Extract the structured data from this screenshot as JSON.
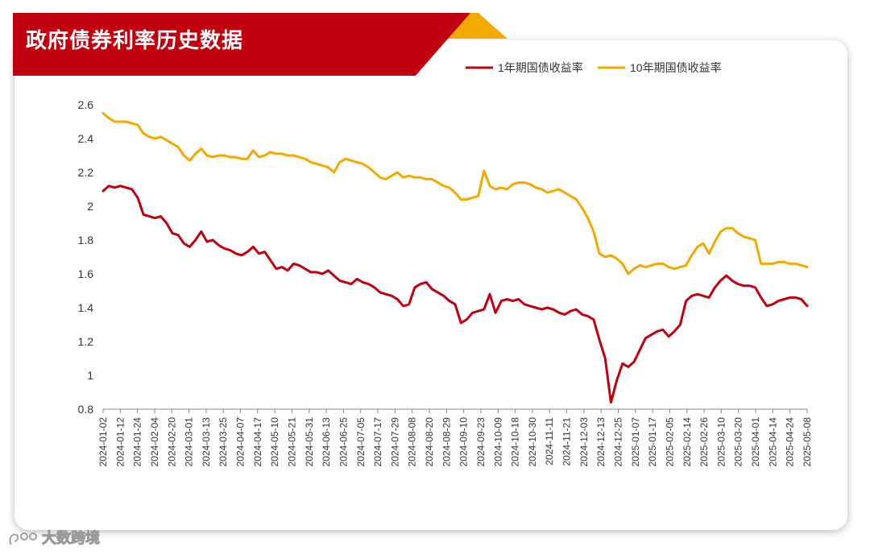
{
  "title": "政府债券利率历史数据",
  "watermark": "大数跨境",
  "chart_data": {
    "type": "line",
    "legend_position": "top-right",
    "grid": false,
    "ylim": [
      0.8,
      2.6
    ],
    "y_ticks": [
      "2.6",
      "2.4",
      "2.2",
      "2",
      "1.8",
      "1.6",
      "1.4",
      "1.2",
      "1",
      "0.8"
    ],
    "x_ticks": [
      "2024-01-02",
      "2024-01-12",
      "2024-01-24",
      "2024-02-04",
      "2024-02-20",
      "2024-03-01",
      "2024-03-13",
      "2024-03-25",
      "2024-04-07",
      "2024-04-17",
      "2024-05-10",
      "2024-05-21",
      "2024-05-31",
      "2024-06-13",
      "2024-06-25",
      "2024-07-05",
      "2024-07-17",
      "2024-07-29",
      "2024-08-08",
      "2024-08-20",
      "2024-08-29",
      "2024-09-10",
      "2024-09-23",
      "2024-10-09",
      "2024-10-18",
      "2024-10-30",
      "2024-11-11",
      "2024-11-21",
      "2024-12-03",
      "2024-12-13",
      "2024-12-25",
      "2025-01-07",
      "2025-01-17",
      "2025-02-05",
      "2025-02-14",
      "2025-02-26",
      "2025-03-10",
      "2025-03-20",
      "2025-04-01",
      "2025-04-14",
      "2025-04-24",
      "2025-05-08"
    ],
    "series": [
      {
        "name": "1年期国债收益率",
        "color": "#c0000f",
        "values": [
          2.09,
          2.12,
          2.11,
          2.12,
          2.11,
          2.1,
          2.05,
          1.95,
          1.94,
          1.93,
          1.94,
          1.9,
          1.84,
          1.83,
          1.78,
          1.76,
          1.8,
          1.85,
          1.79,
          1.8,
          1.77,
          1.75,
          1.74,
          1.72,
          1.71,
          1.73,
          1.76,
          1.72,
          1.73,
          1.68,
          1.63,
          1.64,
          1.62,
          1.66,
          1.65,
          1.63,
          1.61,
          1.61,
          1.6,
          1.62,
          1.59,
          1.56,
          1.55,
          1.54,
          1.57,
          1.55,
          1.54,
          1.52,
          1.49,
          1.48,
          1.47,
          1.45,
          1.41,
          1.42,
          1.52,
          1.54,
          1.55,
          1.51,
          1.49,
          1.47,
          1.44,
          1.42,
          1.31,
          1.33,
          1.37,
          1.38,
          1.39,
          1.48,
          1.37,
          1.44,
          1.45,
          1.44,
          1.45,
          1.42,
          1.41,
          1.4,
          1.39,
          1.4,
          1.39,
          1.37,
          1.36,
          1.38,
          1.39,
          1.36,
          1.35,
          1.33,
          1.21,
          1.1,
          0.84,
          0.97,
          1.07,
          1.05,
          1.08,
          1.15,
          1.22,
          1.24,
          1.26,
          1.27,
          1.23,
          1.26,
          1.3,
          1.44,
          1.47,
          1.48,
          1.47,
          1.46,
          1.52,
          1.56,
          1.59,
          1.56,
          1.54,
          1.53,
          1.53,
          1.52,
          1.46,
          1.41,
          1.42,
          1.44,
          1.45,
          1.46,
          1.46,
          1.45,
          1.41
        ]
      },
      {
        "name": "10年期国债收益率",
        "color": "#f2a900",
        "values": [
          2.55,
          2.52,
          2.5,
          2.5,
          2.5,
          2.49,
          2.48,
          2.43,
          2.41,
          2.4,
          2.41,
          2.39,
          2.37,
          2.35,
          2.3,
          2.27,
          2.31,
          2.34,
          2.3,
          2.29,
          2.3,
          2.3,
          2.29,
          2.29,
          2.28,
          2.28,
          2.33,
          2.29,
          2.3,
          2.32,
          2.31,
          2.31,
          2.3,
          2.3,
          2.29,
          2.28,
          2.26,
          2.25,
          2.24,
          2.23,
          2.2,
          2.26,
          2.28,
          2.27,
          2.26,
          2.25,
          2.23,
          2.2,
          2.17,
          2.16,
          2.18,
          2.2,
          2.17,
          2.18,
          2.17,
          2.17,
          2.16,
          2.16,
          2.14,
          2.12,
          2.11,
          2.08,
          2.04,
          2.04,
          2.05,
          2.06,
          2.21,
          2.12,
          2.1,
          2.11,
          2.1,
          2.13,
          2.14,
          2.14,
          2.13,
          2.11,
          2.1,
          2.08,
          2.09,
          2.1,
          2.08,
          2.06,
          2.04,
          1.99,
          1.93,
          1.85,
          1.72,
          1.7,
          1.71,
          1.69,
          1.66,
          1.6,
          1.63,
          1.65,
          1.64,
          1.65,
          1.66,
          1.66,
          1.64,
          1.63,
          1.64,
          1.65,
          1.71,
          1.76,
          1.78,
          1.72,
          1.79,
          1.85,
          1.87,
          1.87,
          1.84,
          1.82,
          1.81,
          1.8,
          1.66,
          1.66,
          1.66,
          1.67,
          1.67,
          1.66,
          1.66,
          1.65,
          1.64
        ]
      }
    ]
  }
}
